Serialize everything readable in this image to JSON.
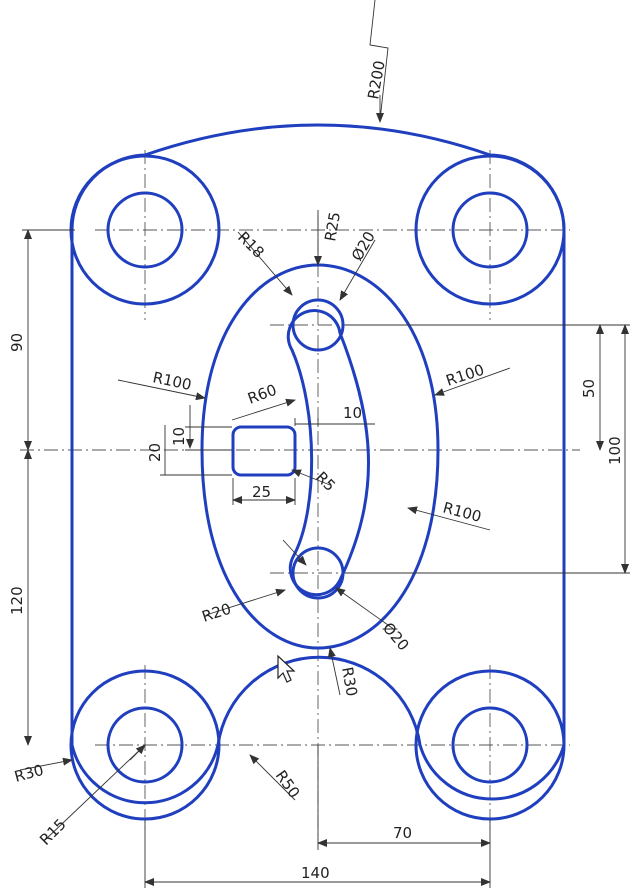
{
  "dimensions": {
    "r200": "R200",
    "r25": "R25",
    "r18": "R18",
    "d20_top": "Ø20",
    "r100_left": "R100",
    "r100_right_top": "R100",
    "r60": "R60",
    "n10_h": "10",
    "n10_v": "10",
    "n20": "20",
    "r5": "R5",
    "n25": "25",
    "r100_right_bottom": "R100",
    "r20": "R20",
    "d20_bottom": "Ø20",
    "r30_inner": "R30",
    "r30_outer": "R30",
    "r15": "R15",
    "r50": "R50",
    "n70": "70",
    "n140": "140",
    "n90": "90",
    "n120": "120",
    "n50": "50",
    "n100": "100"
  },
  "colors": {
    "part_line": "#1f3fbf",
    "dimension_line": "#333333",
    "center_line": "#555555"
  }
}
